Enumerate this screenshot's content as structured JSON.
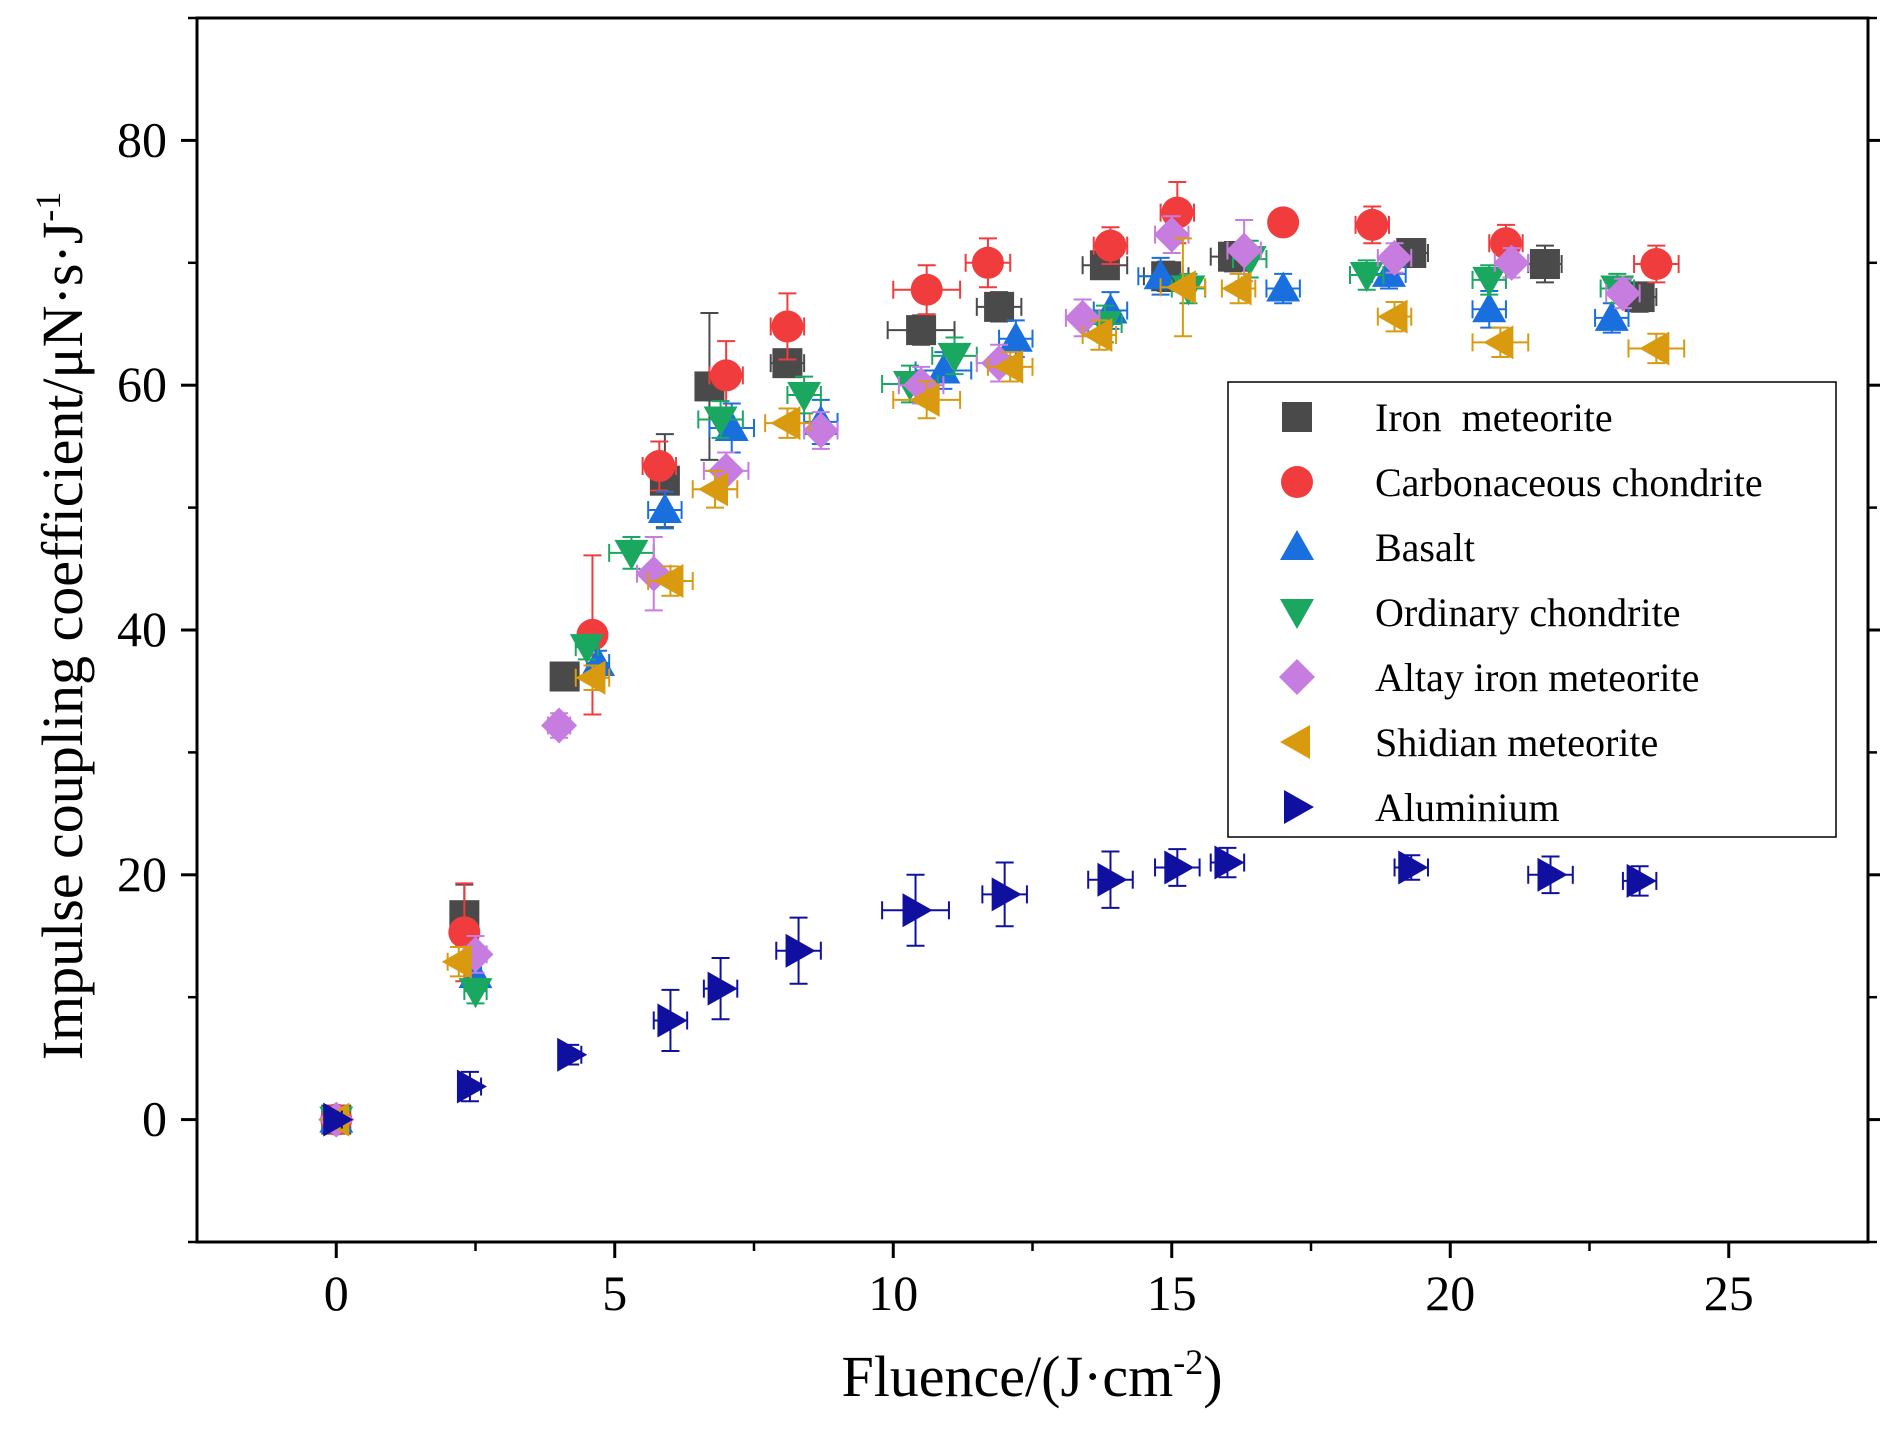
{
  "chart_data": {
    "type": "scatter",
    "xlabel": "Fluence/(J·cm",
    "xlabel_sup": "-2",
    "xlabel_end": ")",
    "ylabel": "Impulse coupling coefficient/μN·s·J",
    "ylabel_sup": "-1",
    "xlim": [
      -2.5,
      27.5
    ],
    "ylim": [
      -10,
      90
    ],
    "xticks": [
      0,
      5,
      10,
      15,
      20,
      25
    ],
    "yticks": [
      0,
      20,
      40,
      60,
      80
    ],
    "legend_position": "right",
    "series": [
      {
        "name": "Iron  meteorite",
        "marker": "square",
        "color": "#4a4a4a",
        "points": [
          [
            0,
            0
          ],
          [
            2.3,
            16.7
          ],
          [
            4.1,
            36.2
          ],
          [
            5.9,
            52.2
          ],
          [
            6.7,
            59.9
          ],
          [
            8.1,
            61.8
          ],
          [
            10.5,
            64.5
          ],
          [
            11.9,
            66.4
          ],
          [
            13.8,
            69.8
          ],
          [
            14.9,
            68.9
          ],
          [
            16.1,
            70.5
          ],
          [
            19.3,
            70.8
          ],
          [
            21.7,
            69.9
          ],
          [
            23.4,
            67.2
          ]
        ],
        "xerr": [
          0.1,
          0.1,
          0.1,
          0.2,
          0.2,
          0.3,
          0.6,
          0.4,
          0.4,
          0.4,
          0.4,
          0.3,
          0.3,
          0.3
        ],
        "yerr": [
          0.3,
          2.5,
          0.8,
          3.8,
          6.0,
          1.0,
          1.2,
          1.2,
          1.0,
          1.2,
          1.2,
          1.0,
          1.5,
          1.2
        ]
      },
      {
        "name": "Carbonaceous chondrite",
        "marker": "circle",
        "color": "#f03c3c",
        "points": [
          [
            0,
            0
          ],
          [
            2.3,
            15.3
          ],
          [
            4.6,
            39.6
          ],
          [
            5.8,
            53.4
          ],
          [
            7.0,
            60.8
          ],
          [
            8.1,
            64.8
          ],
          [
            10.6,
            67.8
          ],
          [
            11.7,
            70.0
          ],
          [
            13.9,
            71.4
          ],
          [
            15.1,
            74.1
          ],
          [
            17.0,
            73.3
          ],
          [
            18.6,
            73.1
          ],
          [
            21.0,
            71.6
          ],
          [
            23.7,
            69.9
          ]
        ],
        "xerr": [
          0.1,
          0.2,
          0.2,
          0.3,
          0.3,
          0.3,
          0.6,
          0.4,
          0.3,
          0.3,
          0.2,
          0.3,
          0.3,
          0.4
        ],
        "yerr": [
          0.3,
          4.0,
          6.5,
          2.0,
          2.8,
          2.7,
          2.0,
          2.0,
          1.5,
          2.5,
          1.0,
          1.5,
          1.5,
          1.5
        ]
      },
      {
        "name": "Basalt",
        "marker": "triangle-up",
        "color": "#1a6fdf",
        "points": [
          [
            0,
            0
          ],
          [
            2.5,
            11.8
          ],
          [
            4.7,
            37.3
          ],
          [
            5.9,
            49.8
          ],
          [
            7.1,
            56.5
          ],
          [
            8.7,
            57.0
          ],
          [
            10.9,
            61.2
          ],
          [
            12.2,
            63.8
          ],
          [
            13.9,
            66.1
          ],
          [
            14.8,
            68.9
          ],
          [
            17.0,
            67.9
          ],
          [
            18.9,
            69.1
          ],
          [
            20.7,
            66.2
          ],
          [
            22.9,
            65.5
          ]
        ],
        "xerr": [
          0.1,
          0.1,
          0.2,
          0.3,
          0.4,
          0.3,
          0.5,
          0.3,
          0.3,
          0.4,
          0.3,
          0.3,
          0.3,
          0.3
        ],
        "yerr": [
          0.3,
          1.0,
          1.0,
          1.5,
          2.0,
          1.8,
          1.5,
          1.5,
          1.5,
          1.5,
          1.2,
          1.2,
          1.5,
          1.2
        ]
      },
      {
        "name": "Ordinary chondrite",
        "marker": "triangle-down",
        "color": "#1aa860",
        "points": [
          [
            0,
            0
          ],
          [
            2.5,
            10.5
          ],
          [
            4.5,
            38.6
          ],
          [
            5.3,
            46.3
          ],
          [
            6.9,
            57.2
          ],
          [
            8.4,
            59.2
          ],
          [
            10.3,
            60.1
          ],
          [
            11.1,
            62.4
          ],
          [
            13.8,
            65.0
          ],
          [
            15.3,
            67.9
          ],
          [
            16.4,
            70.3
          ],
          [
            18.5,
            69.0
          ],
          [
            20.7,
            68.6
          ],
          [
            23.0,
            67.9
          ]
        ],
        "xerr": [
          0.1,
          0.2,
          0.2,
          0.4,
          0.4,
          0.3,
          0.5,
          0.4,
          0.3,
          0.3,
          0.3,
          0.3,
          0.3,
          0.3
        ],
        "yerr": [
          0.3,
          1.0,
          1.0,
          1.3,
          1.5,
          1.5,
          1.5,
          1.5,
          1.5,
          1.2,
          1.5,
          1.2,
          1.2,
          1.2
        ]
      },
      {
        "name": "Altay iron meteorite",
        "marker": "diamond",
        "color": "#c77ddf",
        "points": [
          [
            0,
            0
          ],
          [
            2.5,
            13.5
          ],
          [
            4.0,
            32.2
          ],
          [
            5.7,
            44.6
          ],
          [
            7.0,
            53.0
          ],
          [
            8.7,
            56.3
          ],
          [
            10.5,
            60.0
          ],
          [
            11.9,
            61.8
          ],
          [
            13.4,
            65.5
          ],
          [
            15.0,
            72.3
          ],
          [
            16.3,
            71.0
          ],
          [
            19.0,
            70.4
          ],
          [
            21.1,
            70.0
          ],
          [
            23.1,
            67.5
          ]
        ],
        "xerr": [
          0.1,
          0.2,
          0.2,
          0.3,
          0.4,
          0.3,
          0.4,
          0.4,
          0.3,
          0.3,
          0.3,
          0.3,
          0.3,
          0.3
        ],
        "yerr": [
          0.3,
          1.5,
          1.0,
          3.0,
          1.5,
          1.5,
          1.5,
          1.5,
          1.5,
          1.5,
          2.5,
          1.2,
          1.2,
          1.2
        ]
      },
      {
        "name": "Shidian meteorite",
        "marker": "triangle-left",
        "color": "#d99a10",
        "points": [
          [
            0,
            0
          ],
          [
            2.2,
            12.9
          ],
          [
            4.6,
            36.1
          ],
          [
            6.0,
            44.0
          ],
          [
            6.8,
            51.5
          ],
          [
            8.1,
            56.9
          ],
          [
            10.6,
            58.8
          ],
          [
            12.1,
            61.5
          ],
          [
            13.7,
            64.1
          ],
          [
            15.2,
            68.0
          ],
          [
            16.2,
            67.9
          ],
          [
            19.0,
            65.6
          ],
          [
            20.9,
            63.5
          ],
          [
            23.7,
            63.0
          ]
        ],
        "xerr": [
          0.1,
          0.2,
          0.3,
          0.4,
          0.4,
          0.4,
          0.6,
          0.4,
          0.3,
          0.4,
          0.3,
          0.3,
          0.5,
          0.5
        ],
        "yerr": [
          0.3,
          1.2,
          1.0,
          1.2,
          1.5,
          1.2,
          1.5,
          1.2,
          1.2,
          4.0,
          1.2,
          1.2,
          1.2,
          1.2
        ]
      },
      {
        "name": "Aluminium",
        "marker": "triangle-right",
        "color": "#1010a0",
        "points": [
          [
            0,
            0
          ],
          [
            2.4,
            2.7
          ],
          [
            4.2,
            5.3
          ],
          [
            6.0,
            8.1
          ],
          [
            6.9,
            10.7
          ],
          [
            8.3,
            13.8
          ],
          [
            10.4,
            17.1
          ],
          [
            12.0,
            18.4
          ],
          [
            13.9,
            19.6
          ],
          [
            15.1,
            20.6
          ],
          [
            16.0,
            21.0
          ],
          [
            19.3,
            20.6
          ],
          [
            21.8,
            20.0
          ],
          [
            23.4,
            19.5
          ]
        ],
        "xerr": [
          0.1,
          0.2,
          0.2,
          0.3,
          0.3,
          0.4,
          0.6,
          0.4,
          0.4,
          0.4,
          0.3,
          0.3,
          0.4,
          0.3
        ],
        "yerr": [
          0.3,
          1.2,
          0.8,
          2.5,
          2.5,
          2.7,
          2.9,
          2.6,
          2.3,
          1.5,
          1.2,
          1.0,
          1.5,
          1.2
        ]
      }
    ]
  }
}
